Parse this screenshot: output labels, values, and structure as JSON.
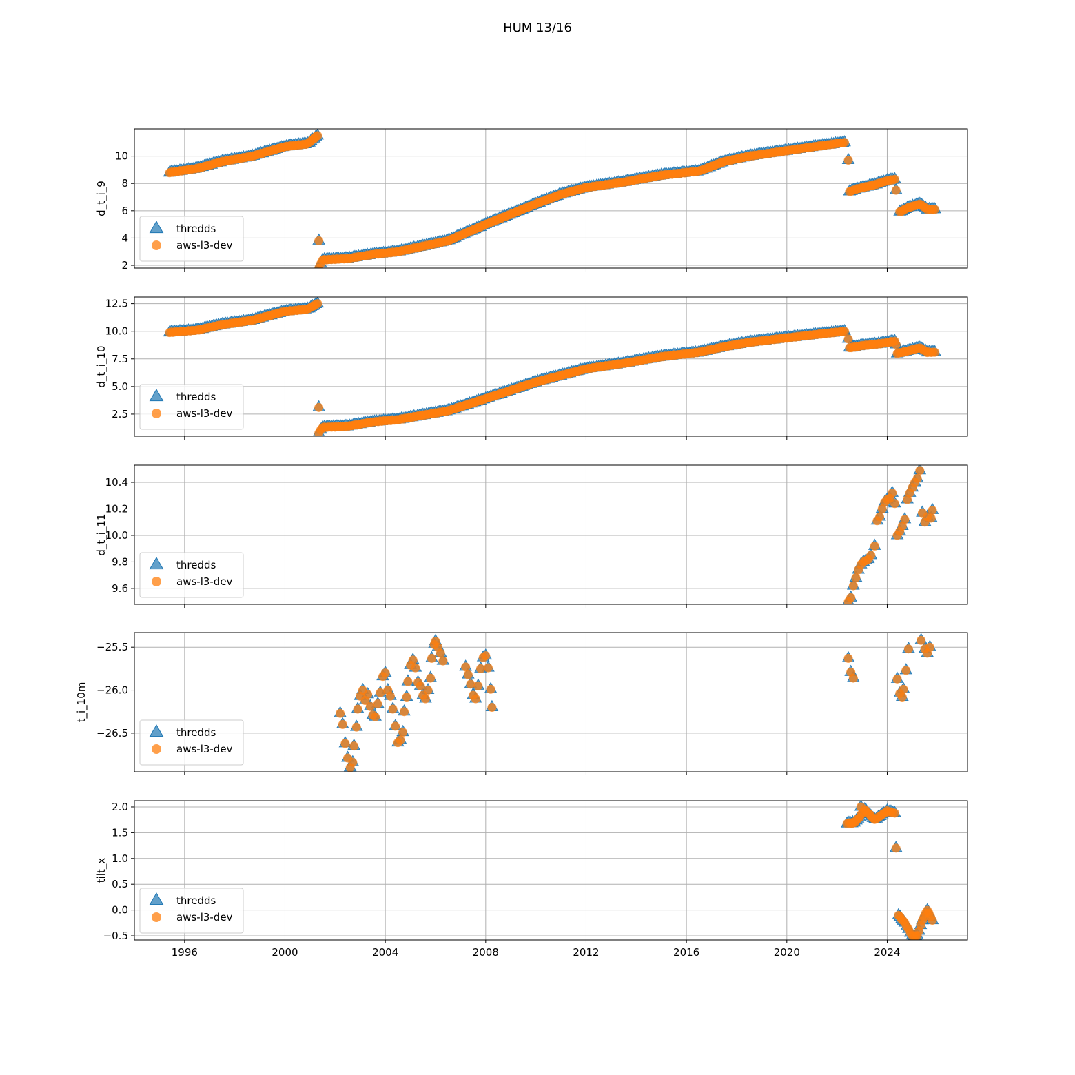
{
  "figure": {
    "title": "HUM 13/16"
  },
  "legend": {
    "series_a": "thredds",
    "series_b": "aws-l3-dev",
    "placement": "lower-left"
  },
  "colors": {
    "thredds": "#1f77b4",
    "aws": "#ff7f0e",
    "grid": "#b0b0b0"
  },
  "chart_data": [
    {
      "type": "scatter",
      "ylabel": "d_t_i_9",
      "xlim": [
        1994.0,
        2027.2
      ],
      "ylim": [
        1.8,
        12.0
      ],
      "yticks": [
        2,
        4,
        6,
        8,
        10
      ],
      "yticklabels": [
        "2",
        "4",
        "6",
        "8",
        "10"
      ],
      "xticks": [
        1996,
        2000,
        2004,
        2008,
        2012,
        2016,
        2020,
        2024
      ],
      "segments": [
        {
          "x": [
            1995.4,
            1996.5,
            1997.5,
            1998.7,
            2000.0,
            2000.9,
            2001.3
          ],
          "y": [
            8.8,
            9.1,
            9.6,
            10.0,
            10.7,
            10.9,
            11.5
          ]
        },
        {
          "x": [
            2001.35,
            2001.5,
            2002.5,
            2003.5,
            2004.5,
            2005.5,
            2006.5,
            2008.0,
            2010.0,
            2011.0,
            2012.0,
            2013.5,
            2015.0,
            2016.5,
            2017.5,
            2018.5,
            2020.0,
            2021.5,
            2022.3
          ],
          "y": [
            1.8,
            2.4,
            2.5,
            2.8,
            3.0,
            3.4,
            3.8,
            5.0,
            6.5,
            7.2,
            7.7,
            8.1,
            8.6,
            8.9,
            9.6,
            10.0,
            10.4,
            10.8,
            11.0
          ]
        },
        {
          "x": [
            2022.5,
            2022.8,
            2023.5,
            2024.0,
            2024.3
          ],
          "y": [
            7.4,
            7.6,
            7.9,
            8.2,
            8.3
          ]
        },
        {
          "x": [
            2024.5,
            2024.8,
            2025.3,
            2025.6,
            2025.9
          ],
          "y": [
            5.9,
            6.2,
            6.5,
            6.1,
            6.1
          ]
        }
      ],
      "isolated": [
        {
          "x": 2001.35,
          "y": 3.8
        },
        {
          "x": 2022.45,
          "y": 9.7
        },
        {
          "x": 2024.35,
          "y": 7.5
        }
      ]
    },
    {
      "type": "scatter",
      "ylabel": "d_t_i_10",
      "xlim": [
        1994.0,
        2027.2
      ],
      "ylim": [
        0.5,
        13.1
      ],
      "yticks": [
        2.5,
        5.0,
        7.5,
        10.0,
        12.5
      ],
      "yticklabels": [
        "2.5",
        "5.0",
        "7.5",
        "10.0",
        "12.5"
      ],
      "xticks": [
        1996,
        2000,
        2004,
        2008,
        2012,
        2016,
        2020,
        2024
      ],
      "segments": [
        {
          "x": [
            1995.4,
            1996.5,
            1997.5,
            1998.7,
            2000.0,
            2000.9,
            2001.3
          ],
          "y": [
            9.9,
            10.1,
            10.6,
            11.0,
            11.8,
            12.0,
            12.5
          ]
        },
        {
          "x": [
            2001.35,
            2001.5,
            2002.5,
            2003.5,
            2004.5,
            2005.5,
            2006.5,
            2008.0,
            2010.0,
            2011.0,
            2012.0,
            2013.5,
            2015.0,
            2016.5,
            2017.5,
            2018.5,
            2020.0,
            2021.5,
            2022.3
          ],
          "y": [
            0.8,
            1.3,
            1.4,
            1.8,
            2.0,
            2.4,
            2.8,
            3.9,
            5.4,
            6.0,
            6.6,
            7.1,
            7.7,
            8.1,
            8.6,
            9.0,
            9.4,
            9.8,
            10.0
          ]
        },
        {
          "x": [
            2022.5,
            2023.0,
            2023.8,
            2024.3
          ],
          "y": [
            8.5,
            8.7,
            8.9,
            9.1
          ]
        },
        {
          "x": [
            2024.4,
            2024.8,
            2025.3,
            2025.6,
            2025.9
          ],
          "y": [
            8.0,
            8.2,
            8.5,
            8.1,
            8.1
          ]
        }
      ],
      "isolated": [
        {
          "x": 2001.35,
          "y": 3.1
        },
        {
          "x": 2022.45,
          "y": 9.3
        },
        {
          "x": 2024.35,
          "y": 8.8
        }
      ]
    },
    {
      "type": "scatter",
      "ylabel": "d_t_i_11",
      "xlim": [
        1994.0,
        2027.2
      ],
      "ylim": [
        9.48,
        10.53
      ],
      "yticks": [
        9.6,
        9.8,
        10.0,
        10.2,
        10.4
      ],
      "yticklabels": [
        "9.6",
        "9.8",
        "10.0",
        "10.2",
        "10.4"
      ],
      "xticks": [
        1996,
        2000,
        2004,
        2008,
        2012,
        2016,
        2020,
        2024
      ],
      "points": [
        [
          2022.45,
          9.5
        ],
        [
          2022.55,
          9.53
        ],
        [
          2022.65,
          9.62
        ],
        [
          2022.75,
          9.68
        ],
        [
          2022.85,
          9.74
        ],
        [
          2022.95,
          9.78
        ],
        [
          2023.05,
          9.8
        ],
        [
          2023.15,
          9.81
        ],
        [
          2023.25,
          9.82
        ],
        [
          2023.35,
          9.85
        ],
        [
          2023.5,
          9.92
        ],
        [
          2023.6,
          10.11
        ],
        [
          2023.7,
          10.14
        ],
        [
          2023.8,
          10.2
        ],
        [
          2023.9,
          10.25
        ],
        [
          2024.0,
          10.27
        ],
        [
          2024.1,
          10.28
        ],
        [
          2024.2,
          10.32
        ],
        [
          2024.3,
          10.24
        ],
        [
          2024.4,
          10.0
        ],
        [
          2024.5,
          10.03
        ],
        [
          2024.6,
          10.07
        ],
        [
          2024.7,
          10.12
        ],
        [
          2024.8,
          10.27
        ],
        [
          2024.9,
          10.32
        ],
        [
          2025.0,
          10.36
        ],
        [
          2025.1,
          10.4
        ],
        [
          2025.2,
          10.43
        ],
        [
          2025.3,
          10.49
        ],
        [
          2025.4,
          10.17
        ],
        [
          2025.5,
          10.1
        ],
        [
          2025.6,
          10.14
        ],
        [
          2025.75,
          10.13
        ],
        [
          2025.8,
          10.19
        ]
      ]
    },
    {
      "type": "scatter",
      "ylabel": "t_i_10m",
      "xlim": [
        1994.0,
        2027.2
      ],
      "ylim": [
        -26.95,
        -25.33
      ],
      "yticks": [
        -26.5,
        -26.0,
        -25.5
      ],
      "yticklabels": [
        "−26.5",
        "−26.0",
        "−25.5"
      ],
      "xticks": [
        1996,
        2000,
        2004,
        2008,
        2012,
        2016,
        2020,
        2024
      ],
      "points": [
        [
          2002.2,
          -26.27
        ],
        [
          2002.3,
          -26.4
        ],
        [
          2002.4,
          -26.62
        ],
        [
          2002.5,
          -26.79
        ],
        [
          2002.6,
          -26.9
        ],
        [
          2002.7,
          -26.84
        ],
        [
          2002.75,
          -26.65
        ],
        [
          2002.85,
          -26.43
        ],
        [
          2002.9,
          -26.22
        ],
        [
          2003.0,
          -26.07
        ],
        [
          2003.1,
          -26.0
        ],
        [
          2003.2,
          -26.12
        ],
        [
          2003.3,
          -26.05
        ],
        [
          2003.4,
          -26.19
        ],
        [
          2003.5,
          -26.29
        ],
        [
          2003.6,
          -26.31
        ],
        [
          2003.7,
          -26.16
        ],
        [
          2003.8,
          -26.03
        ],
        [
          2003.9,
          -25.84
        ],
        [
          2004.0,
          -25.8
        ],
        [
          2004.1,
          -26.0
        ],
        [
          2004.2,
          -26.07
        ],
        [
          2004.3,
          -26.22
        ],
        [
          2004.4,
          -26.42
        ],
        [
          2004.5,
          -26.61
        ],
        [
          2004.6,
          -26.58
        ],
        [
          2004.7,
          -26.49
        ],
        [
          2004.75,
          -26.25
        ],
        [
          2004.85,
          -26.08
        ],
        [
          2004.9,
          -25.9
        ],
        [
          2005.0,
          -25.71
        ],
        [
          2005.1,
          -25.65
        ],
        [
          2005.2,
          -25.74
        ],
        [
          2005.3,
          -25.91
        ],
        [
          2005.4,
          -25.95
        ],
        [
          2005.5,
          -26.06
        ],
        [
          2005.6,
          -26.1
        ],
        [
          2005.7,
          -26.0
        ],
        [
          2005.8,
          -25.86
        ],
        [
          2005.85,
          -25.63
        ],
        [
          2005.95,
          -25.47
        ],
        [
          2006.0,
          -25.43
        ],
        [
          2006.1,
          -25.5
        ],
        [
          2006.2,
          -25.57
        ],
        [
          2006.3,
          -25.66
        ],
        [
          2007.2,
          -25.73
        ],
        [
          2007.3,
          -25.82
        ],
        [
          2007.4,
          -25.93
        ],
        [
          2007.5,
          -26.06
        ],
        [
          2007.6,
          -26.1
        ],
        [
          2007.7,
          -25.95
        ],
        [
          2007.8,
          -25.75
        ],
        [
          2007.9,
          -25.62
        ],
        [
          2008.0,
          -25.6
        ],
        [
          2008.1,
          -25.74
        ],
        [
          2008.2,
          -25.99
        ],
        [
          2008.25,
          -26.2
        ],
        [
          2022.45,
          -25.63
        ],
        [
          2022.55,
          -25.79
        ],
        [
          2022.65,
          -25.86
        ],
        [
          2024.4,
          -25.87
        ],
        [
          2024.5,
          -26.04
        ],
        [
          2024.6,
          -26.08
        ],
        [
          2024.65,
          -25.99
        ],
        [
          2024.75,
          -25.77
        ],
        [
          2024.85,
          -25.52
        ],
        [
          2025.35,
          -25.42
        ],
        [
          2025.5,
          -25.52
        ],
        [
          2025.6,
          -25.57
        ],
        [
          2025.7,
          -25.5
        ]
      ]
    },
    {
      "type": "scatter",
      "ylabel": "tilt_x",
      "xlim": [
        1994.0,
        2027.2
      ],
      "ylim": [
        -0.58,
        2.12
      ],
      "yticks": [
        -0.5,
        0.0,
        0.5,
        1.0,
        1.5,
        2.0
      ],
      "yticklabels": [
        "−0.5",
        "0.0",
        "0.5",
        "1.0",
        "1.5",
        "2.0"
      ],
      "xticks": [
        1996,
        2000,
        2004,
        2008,
        2012,
        2016,
        2020,
        2024
      ],
      "xticklabels": [
        "1996",
        "2000",
        "2004",
        "2008",
        "2012",
        "2016",
        "2020",
        "2024"
      ],
      "segments": [
        {
          "x": [
            2022.4,
            2022.7,
            2022.9,
            2023.1,
            2023.5,
            2023.8,
            2024.0,
            2024.3
          ],
          "y": [
            1.68,
            1.7,
            1.8,
            1.95,
            1.75,
            1.85,
            1.92,
            1.88
          ]
        },
        {
          "x": [
            2024.45,
            2024.7,
            2025.0,
            2025.2,
            2025.4,
            2025.6,
            2025.8
          ],
          "y": [
            -0.1,
            -0.25,
            -0.5,
            -0.5,
            -0.2,
            0.0,
            -0.2
          ]
        }
      ],
      "isolated": [
        {
          "x": 2022.6,
          "y": 1.68
        },
        {
          "x": 2022.95,
          "y": 2.0
        },
        {
          "x": 2024.35,
          "y": 1.2
        }
      ]
    }
  ]
}
